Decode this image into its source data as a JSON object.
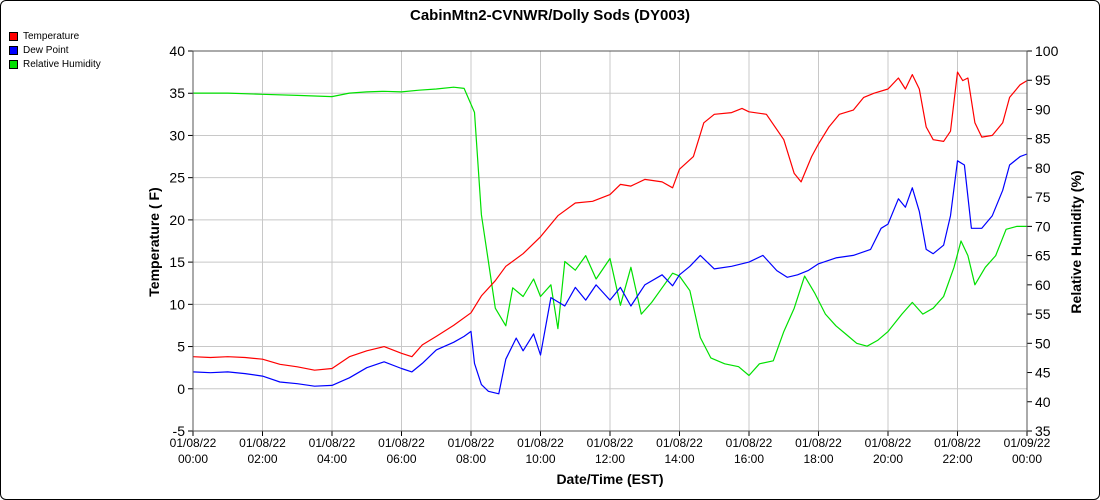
{
  "chart_data": {
    "type": "line",
    "title": "CabinMtn2-CVNWR/Dolly Sods (DY003)",
    "xlabel": "Date/Time (EST)",
    "ylabel_left": "Temperature ( F)",
    "ylabel_right": "Relative Humidity (%)",
    "y_left_lim": [
      -5,
      40
    ],
    "y_left_ticks": [
      "-5",
      "0",
      "5",
      "10",
      "15",
      "20",
      "25",
      "30",
      "35",
      "40"
    ],
    "y_right_lim": [
      35,
      100
    ],
    "y_right_ticks": [
      "35",
      "40",
      "45",
      "50",
      "55",
      "60",
      "65",
      "70",
      "75",
      "80",
      "85",
      "90",
      "95",
      "100"
    ],
    "x_range_hours": [
      0,
      24
    ],
    "x_ticks": [
      {
        "date": "01/08/22",
        "time": "00:00"
      },
      {
        "date": "01/08/22",
        "time": "02:00"
      },
      {
        "date": "01/08/22",
        "time": "04:00"
      },
      {
        "date": "01/08/22",
        "time": "06:00"
      },
      {
        "date": "01/08/22",
        "time": "08:00"
      },
      {
        "date": "01/08/22",
        "time": "10:00"
      },
      {
        "date": "01/08/22",
        "time": "12:00"
      },
      {
        "date": "01/08/22",
        "time": "14:00"
      },
      {
        "date": "01/08/22",
        "time": "16:00"
      },
      {
        "date": "01/08/22",
        "time": "18:00"
      },
      {
        "date": "01/08/22",
        "time": "20:00"
      },
      {
        "date": "01/08/22",
        "time": "22:00"
      },
      {
        "date": "01/09/22",
        "time": "00:00"
      }
    ],
    "grid": true,
    "legend_position": "top-left",
    "series": [
      {
        "name": "Temperature",
        "axis": "left",
        "color": "#ff0000",
        "points": [
          [
            0,
            3.8
          ],
          [
            0.5,
            3.7
          ],
          [
            1,
            3.8
          ],
          [
            1.5,
            3.7
          ],
          [
            2,
            3.5
          ],
          [
            2.5,
            2.9
          ],
          [
            3,
            2.6
          ],
          [
            3.5,
            2.2
          ],
          [
            4,
            2.4
          ],
          [
            4.5,
            3.8
          ],
          [
            5,
            4.5
          ],
          [
            5.5,
            5.0
          ],
          [
            6,
            4.2
          ],
          [
            6.3,
            3.8
          ],
          [
            6.6,
            5.2
          ],
          [
            7,
            6.2
          ],
          [
            7.5,
            7.5
          ],
          [
            8,
            9.0
          ],
          [
            8.3,
            11.0
          ],
          [
            8.7,
            12.8
          ],
          [
            9,
            14.5
          ],
          [
            9.5,
            16.0
          ],
          [
            10,
            18.0
          ],
          [
            10.5,
            20.5
          ],
          [
            11,
            22.0
          ],
          [
            11.5,
            22.2
          ],
          [
            12,
            23.0
          ],
          [
            12.3,
            24.2
          ],
          [
            12.6,
            24.0
          ],
          [
            13,
            24.8
          ],
          [
            13.5,
            24.5
          ],
          [
            13.8,
            23.8
          ],
          [
            14,
            26.0
          ],
          [
            14.4,
            27.5
          ],
          [
            14.7,
            31.5
          ],
          [
            15,
            32.5
          ],
          [
            15.5,
            32.7
          ],
          [
            15.8,
            33.2
          ],
          [
            16,
            32.8
          ],
          [
            16.5,
            32.5
          ],
          [
            17,
            29.5
          ],
          [
            17.3,
            25.5
          ],
          [
            17.5,
            24.5
          ],
          [
            17.8,
            27.5
          ],
          [
            18,
            29.0
          ],
          [
            18.3,
            31.0
          ],
          [
            18.6,
            32.5
          ],
          [
            19,
            33.0
          ],
          [
            19.3,
            34.5
          ],
          [
            19.6,
            35.0
          ],
          [
            20,
            35.5
          ],
          [
            20.3,
            36.8
          ],
          [
            20.5,
            35.5
          ],
          [
            20.7,
            37.2
          ],
          [
            20.9,
            35.5
          ],
          [
            21.1,
            31.0
          ],
          [
            21.3,
            29.5
          ],
          [
            21.6,
            29.3
          ],
          [
            21.8,
            30.5
          ],
          [
            22.0,
            37.5
          ],
          [
            22.15,
            36.5
          ],
          [
            22.3,
            36.8
          ],
          [
            22.5,
            31.5
          ],
          [
            22.7,
            29.8
          ],
          [
            23.0,
            30.0
          ],
          [
            23.3,
            31.5
          ],
          [
            23.5,
            34.5
          ],
          [
            23.8,
            36.0
          ],
          [
            24,
            36.5
          ]
        ]
      },
      {
        "name": "Dew Point",
        "axis": "left",
        "color": "#0000ff",
        "points": [
          [
            0,
            2.0
          ],
          [
            0.5,
            1.9
          ],
          [
            1,
            2.0
          ],
          [
            1.5,
            1.8
          ],
          [
            2,
            1.5
          ],
          [
            2.5,
            0.8
          ],
          [
            3,
            0.6
          ],
          [
            3.5,
            0.3
          ],
          [
            4,
            0.4
          ],
          [
            4.5,
            1.3
          ],
          [
            5,
            2.5
          ],
          [
            5.5,
            3.2
          ],
          [
            6,
            2.4
          ],
          [
            6.3,
            2.0
          ],
          [
            6.6,
            3.0
          ],
          [
            7,
            4.6
          ],
          [
            7.5,
            5.5
          ],
          [
            7.8,
            6.2
          ],
          [
            8.0,
            6.8
          ],
          [
            8.1,
            3.0
          ],
          [
            8.3,
            0.5
          ],
          [
            8.5,
            -0.3
          ],
          [
            8.8,
            -0.6
          ],
          [
            9.0,
            3.5
          ],
          [
            9.3,
            6.0
          ],
          [
            9.5,
            4.5
          ],
          [
            9.8,
            6.5
          ],
          [
            10,
            4.0
          ],
          [
            10.3,
            10.8
          ],
          [
            10.7,
            9.8
          ],
          [
            11,
            12.0
          ],
          [
            11.3,
            10.5
          ],
          [
            11.6,
            12.3
          ],
          [
            12,
            10.5
          ],
          [
            12.3,
            12.0
          ],
          [
            12.6,
            9.8
          ],
          [
            13,
            12.3
          ],
          [
            13.5,
            13.5
          ],
          [
            13.8,
            12.2
          ],
          [
            14,
            13.5
          ],
          [
            14.3,
            14.5
          ],
          [
            14.6,
            15.8
          ],
          [
            15,
            14.2
          ],
          [
            15.5,
            14.5
          ],
          [
            16,
            15.0
          ],
          [
            16.4,
            15.8
          ],
          [
            16.8,
            14.0
          ],
          [
            17.1,
            13.2
          ],
          [
            17.4,
            13.5
          ],
          [
            17.7,
            14.0
          ],
          [
            18,
            14.8
          ],
          [
            18.5,
            15.5
          ],
          [
            19,
            15.8
          ],
          [
            19.5,
            16.5
          ],
          [
            19.8,
            19.0
          ],
          [
            20.0,
            19.5
          ],
          [
            20.3,
            22.5
          ],
          [
            20.5,
            21.5
          ],
          [
            20.7,
            23.8
          ],
          [
            20.9,
            21.0
          ],
          [
            21.1,
            16.5
          ],
          [
            21.3,
            16.0
          ],
          [
            21.6,
            17.0
          ],
          [
            21.8,
            20.5
          ],
          [
            22.0,
            27.0
          ],
          [
            22.2,
            26.5
          ],
          [
            22.4,
            19.0
          ],
          [
            22.7,
            19.0
          ],
          [
            23.0,
            20.5
          ],
          [
            23.3,
            23.5
          ],
          [
            23.5,
            26.5
          ],
          [
            23.8,
            27.5
          ],
          [
            24,
            27.8
          ]
        ]
      },
      {
        "name": "Relative Humidity",
        "axis": "right",
        "color": "#00e000",
        "points": [
          [
            0,
            92.8
          ],
          [
            1,
            92.8
          ],
          [
            2,
            92.6
          ],
          [
            3,
            92.4
          ],
          [
            4,
            92.2
          ],
          [
            4.5,
            92.8
          ],
          [
            5,
            93.0
          ],
          [
            5.5,
            93.1
          ],
          [
            6,
            93.0
          ],
          [
            6.5,
            93.3
          ],
          [
            7,
            93.5
          ],
          [
            7.5,
            93.8
          ],
          [
            7.8,
            93.6
          ],
          [
            8.1,
            89.5
          ],
          [
            8.3,
            72.0
          ],
          [
            8.5,
            64.0
          ],
          [
            8.7,
            56.0
          ],
          [
            9.0,
            53.0
          ],
          [
            9.2,
            59.5
          ],
          [
            9.5,
            58.0
          ],
          [
            9.8,
            61.0
          ],
          [
            10,
            58.0
          ],
          [
            10.3,
            60.0
          ],
          [
            10.5,
            52.5
          ],
          [
            10.7,
            64.0
          ],
          [
            11,
            62.5
          ],
          [
            11.3,
            65.0
          ],
          [
            11.6,
            61.0
          ],
          [
            12,
            64.5
          ],
          [
            12.3,
            56.5
          ],
          [
            12.6,
            63.0
          ],
          [
            12.9,
            55.0
          ],
          [
            13.2,
            57.0
          ],
          [
            13.5,
            59.5
          ],
          [
            13.8,
            62.0
          ],
          [
            14.0,
            61.5
          ],
          [
            14.3,
            59.0
          ],
          [
            14.6,
            51.0
          ],
          [
            14.9,
            47.5
          ],
          [
            15.3,
            46.5
          ],
          [
            15.7,
            46.0
          ],
          [
            16.0,
            44.5
          ],
          [
            16.3,
            46.5
          ],
          [
            16.7,
            47.0
          ],
          [
            17.0,
            52.0
          ],
          [
            17.3,
            56.0
          ],
          [
            17.6,
            61.5
          ],
          [
            17.9,
            58.5
          ],
          [
            18.2,
            55.0
          ],
          [
            18.5,
            53.0
          ],
          [
            18.8,
            51.5
          ],
          [
            19.1,
            50.0
          ],
          [
            19.4,
            49.5
          ],
          [
            19.7,
            50.5
          ],
          [
            20.0,
            52.0
          ],
          [
            20.4,
            55.0
          ],
          [
            20.7,
            57.0
          ],
          [
            21.0,
            55.0
          ],
          [
            21.3,
            56.0
          ],
          [
            21.6,
            58.0
          ],
          [
            21.9,
            63.0
          ],
          [
            22.1,
            67.5
          ],
          [
            22.3,
            65.0
          ],
          [
            22.5,
            60.0
          ],
          [
            22.8,
            63.0
          ],
          [
            23.1,
            65.0
          ],
          [
            23.4,
            69.5
          ],
          [
            23.7,
            70.0
          ],
          [
            24,
            70.0
          ]
        ]
      }
    ]
  }
}
